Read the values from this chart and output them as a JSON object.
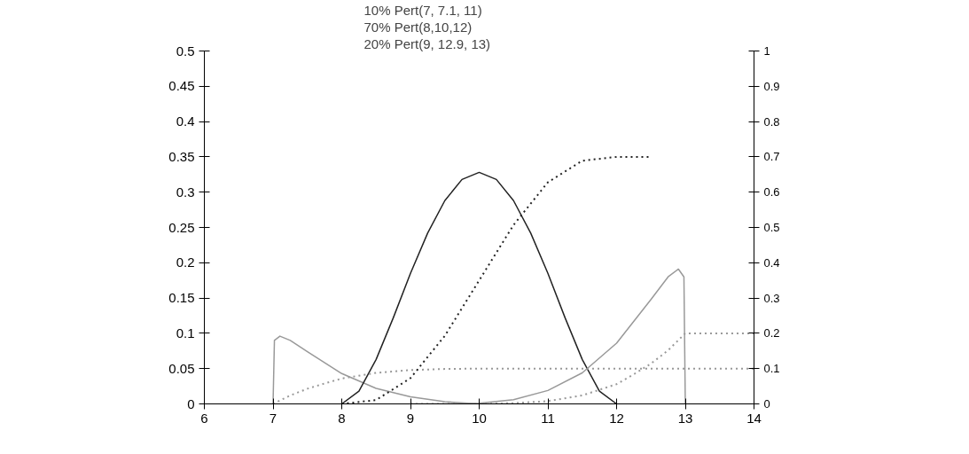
{
  "chart_data": {
    "type": "line",
    "annotations": [
      "10% Pert(7, 7.1, 11)",
      "70% Pert(8,10,12)",
      "20% Pert(9, 12.9, 13)"
    ],
    "xlim": [
      6,
      14
    ],
    "xticks": [
      6,
      7,
      8,
      9,
      10,
      11,
      12,
      13,
      14
    ],
    "ylim": [
      0,
      0.5
    ],
    "yticks": [
      0,
      0.05,
      0.1,
      0.15,
      0.2,
      0.25,
      0.3,
      0.35,
      0.4,
      0.45,
      0.5
    ],
    "y2lim": [
      0,
      1
    ],
    "y2ticks": [
      0,
      0.1,
      0.2,
      0.3,
      0.4,
      0.5,
      0.6,
      0.7,
      0.8,
      0.9,
      1
    ],
    "grid": false,
    "marker": "none",
    "series": [
      {
        "color": "#999999",
        "line_style": "solid",
        "x": [
          7,
          7.02,
          7.1,
          7.25,
          7.5,
          8,
          8.5,
          9,
          9.5,
          10,
          10.5,
          11
        ],
        "values": [
          0,
          0.09,
          0.096,
          0.09,
          0.074,
          0.043,
          0.022,
          0.01,
          0.003,
          0,
          0,
          0
        ]
      },
      {
        "color": "#222222",
        "line_style": "solid",
        "x": [
          8,
          8.25,
          8.5,
          8.75,
          9,
          9.25,
          9.5,
          9.75,
          10,
          10.25,
          10.5,
          10.75,
          11,
          11.25,
          11.5,
          11.75,
          12
        ],
        "values": [
          0,
          0.018,
          0.063,
          0.122,
          0.185,
          0.242,
          0.288,
          0.318,
          0.328,
          0.318,
          0.288,
          0.242,
          0.185,
          0.122,
          0.063,
          0.018,
          0
        ]
      },
      {
        "color": "#999999",
        "line_style": "solid",
        "x": [
          9,
          9.5,
          10,
          10.5,
          11,
          11.5,
          12,
          12.5,
          12.75,
          12.9,
          12.98,
          13
        ],
        "values": [
          0,
          0,
          0.001,
          0.006,
          0.019,
          0.044,
          0.086,
          0.148,
          0.18,
          0.191,
          0.18,
          0
        ]
      },
      {
        "color": "#999999",
        "line_style": "dotted",
        "axis": "y2",
        "x": [
          7,
          7.25,
          7.5,
          7.75,
          8,
          8.5,
          9,
          9.5,
          10,
          14
        ],
        "values": [
          0,
          0.024,
          0.043,
          0.058,
          0.072,
          0.088,
          0.096,
          0.099,
          0.1,
          0.1
        ]
      },
      {
        "color": "#222222",
        "line_style": "dotted",
        "axis": "y2",
        "x": [
          8,
          8.5,
          9,
          9.5,
          10,
          10.5,
          11,
          11.5,
          12,
          12.5
        ],
        "values": [
          0,
          0.011,
          0.073,
          0.193,
          0.35,
          0.507,
          0.628,
          0.689,
          0.7,
          0.7
        ]
      },
      {
        "color": "#999999",
        "line_style": "dotted",
        "axis": "y2",
        "x": [
          9,
          10,
          10.5,
          11,
          11.5,
          12,
          12.25,
          12.5,
          12.75,
          13,
          14
        ],
        "values": [
          0,
          0,
          0.002,
          0.008,
          0.024,
          0.056,
          0.084,
          0.114,
          0.152,
          0.2,
          0.2
        ]
      }
    ]
  }
}
